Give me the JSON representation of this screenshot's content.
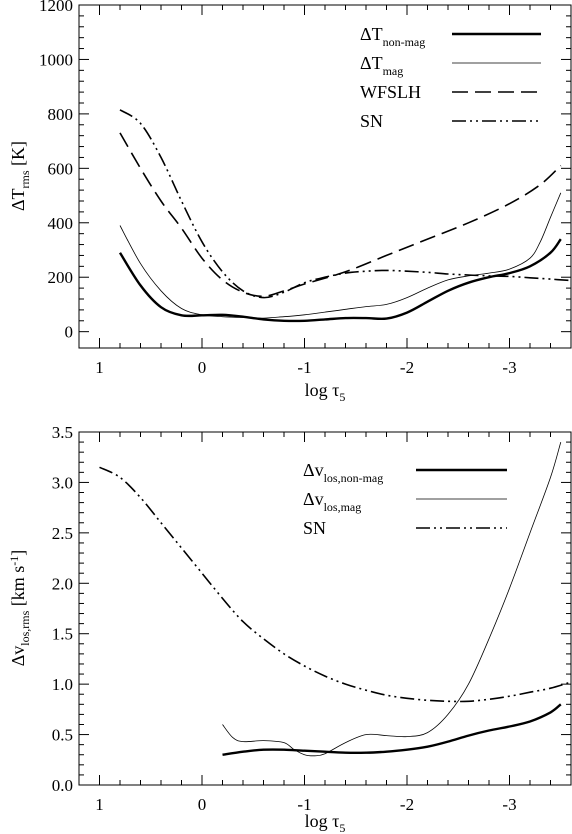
{
  "chart_data": [
    {
      "type": "line",
      "xlabel": "log τ5",
      "ylabel": "ΔTrms [K]",
      "xlim": [
        1.2,
        -3.6
      ],
      "ylim": [
        -60,
        1200
      ],
      "xticks": [
        1,
        0,
        -1,
        -2,
        -3
      ],
      "xtick_labels": [
        "1",
        "0",
        "-1",
        "-2",
        "-3"
      ],
      "yticks": [
        0,
        200,
        400,
        600,
        800,
        1000,
        1200
      ],
      "ytick_labels": [
        "0",
        "200",
        "400",
        "600",
        "800",
        "1000",
        "1200"
      ],
      "legend_position": "top-right",
      "series": [
        {
          "name": "ΔTnon-mag",
          "style": "thick",
          "x": [
            0.8,
            0.6,
            0.4,
            0.2,
            0,
            -0.2,
            -0.4,
            -0.6,
            -0.8,
            -1.0,
            -1.2,
            -1.4,
            -1.6,
            -1.8,
            -2.0,
            -2.2,
            -2.4,
            -2.6,
            -2.8,
            -3.0,
            -3.2,
            -3.4,
            -3.5
          ],
          "y": [
            290,
            170,
            90,
            60,
            60,
            62,
            55,
            45,
            40,
            40,
            45,
            50,
            50,
            48,
            70,
            110,
            150,
            180,
            200,
            215,
            240,
            290,
            340
          ]
        },
        {
          "name": "ΔTmag",
          "style": "thin",
          "x": [
            0.8,
            0.6,
            0.4,
            0.2,
            0,
            -0.2,
            -0.4,
            -0.6,
            -0.8,
            -1.0,
            -1.2,
            -1.4,
            -1.6,
            -1.8,
            -2.0,
            -2.2,
            -2.4,
            -2.6,
            -2.8,
            -3.0,
            -3.2,
            -3.3,
            -3.4,
            -3.5
          ],
          "y": [
            390,
            250,
            150,
            85,
            62,
            55,
            52,
            50,
            55,
            62,
            72,
            82,
            92,
            100,
            125,
            160,
            190,
            205,
            215,
            230,
            270,
            330,
            420,
            510
          ]
        },
        {
          "name": "WFSLH",
          "style": "dashed",
          "x": [
            0.8,
            0.6,
            0.4,
            0.2,
            0,
            -0.2,
            -0.4,
            -0.6,
            -0.8,
            -1.0,
            -1.4,
            -1.8,
            -2.2,
            -2.6,
            -3.0,
            -3.3,
            -3.5
          ],
          "y": [
            730,
            600,
            480,
            380,
            270,
            190,
            145,
            130,
            150,
            175,
            220,
            280,
            340,
            400,
            470,
            540,
            610
          ]
        },
        {
          "name": "SN",
          "style": "dash-dot-dot",
          "x": [
            0.8,
            0.6,
            0.4,
            0.2,
            0,
            -0.2,
            -0.4,
            -0.6,
            -0.8,
            -1.0,
            -1.2,
            -1.4,
            -1.6,
            -1.8,
            -2.0,
            -2.2,
            -2.4,
            -2.6,
            -2.8,
            -3.0,
            -3.2,
            -3.4,
            -3.6
          ],
          "y": [
            815,
            765,
            640,
            480,
            330,
            220,
            150,
            125,
            145,
            180,
            200,
            215,
            222,
            225,
            222,
            218,
            212,
            208,
            205,
            203,
            198,
            193,
            188
          ]
        }
      ]
    },
    {
      "type": "line",
      "xlabel": "log τ5",
      "ylabel": "Δvlos,rms [km s-1]",
      "xlim": [
        1.2,
        -3.6
      ],
      "ylim": [
        0,
        3.5
      ],
      "xticks": [
        1,
        0,
        -1,
        -2,
        -3
      ],
      "xtick_labels": [
        "1",
        "0",
        "-1",
        "-2",
        "-3"
      ],
      "yticks": [
        0,
        0.5,
        1.0,
        1.5,
        2.0,
        2.5,
        3.0,
        3.5
      ],
      "ytick_labels": [
        "0.0",
        "0.5",
        "1.0",
        "1.5",
        "2.0",
        "2.5",
        "3.0",
        "3.5"
      ],
      "legend_position": "top-right",
      "series": [
        {
          "name": "Δvlos,non-mag",
          "style": "thick",
          "x": [
            -0.2,
            -0.4,
            -0.6,
            -0.8,
            -1.0,
            -1.2,
            -1.4,
            -1.6,
            -1.8,
            -2.0,
            -2.2,
            -2.4,
            -2.6,
            -2.8,
            -3.0,
            -3.2,
            -3.4,
            -3.5
          ],
          "y": [
            0.3,
            0.33,
            0.35,
            0.35,
            0.34,
            0.33,
            0.32,
            0.32,
            0.33,
            0.35,
            0.38,
            0.43,
            0.49,
            0.54,
            0.58,
            0.63,
            0.72,
            0.8
          ]
        },
        {
          "name": "Δvlos,mag",
          "style": "thin",
          "x": [
            -0.2,
            -0.3,
            -0.4,
            -0.6,
            -0.8,
            -0.9,
            -1.0,
            -1.1,
            -1.2,
            -1.4,
            -1.6,
            -1.8,
            -2.0,
            -2.2,
            -2.4,
            -2.6,
            -2.8,
            -3.0,
            -3.2,
            -3.4,
            -3.5
          ],
          "y": [
            0.6,
            0.47,
            0.43,
            0.44,
            0.42,
            0.35,
            0.3,
            0.29,
            0.31,
            0.42,
            0.5,
            0.49,
            0.48,
            0.52,
            0.7,
            1.0,
            1.45,
            1.95,
            2.5,
            3.05,
            3.4
          ]
        },
        {
          "name": "SN",
          "style": "dash-dot-dot",
          "x": [
            1.0,
            0.8,
            0.6,
            0.4,
            0.2,
            0,
            -0.2,
            -0.4,
            -0.6,
            -0.8,
            -1.0,
            -1.2,
            -1.4,
            -1.6,
            -1.8,
            -2.0,
            -2.2,
            -2.4,
            -2.6,
            -2.8,
            -3.0,
            -3.2,
            -3.4,
            -3.6
          ],
          "y": [
            3.15,
            3.05,
            2.85,
            2.6,
            2.35,
            2.1,
            1.85,
            1.62,
            1.45,
            1.3,
            1.18,
            1.08,
            1.0,
            0.94,
            0.89,
            0.86,
            0.84,
            0.83,
            0.83,
            0.85,
            0.88,
            0.92,
            0.96,
            1.02
          ]
        }
      ]
    }
  ]
}
